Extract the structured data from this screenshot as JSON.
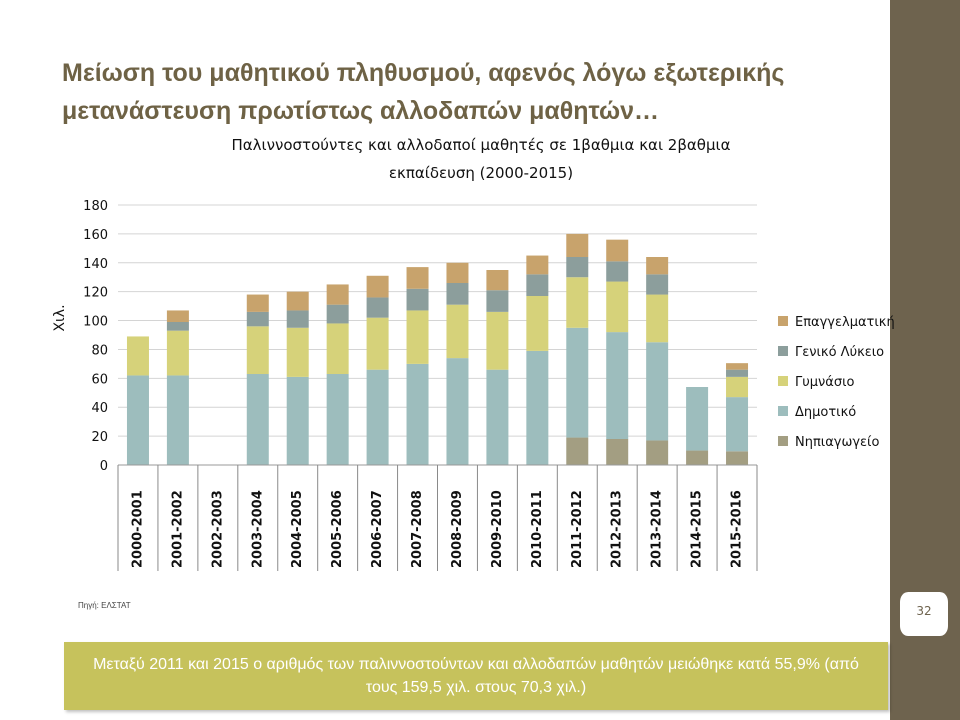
{
  "slide": {
    "title_line1": "Μείωση του μαθητικού πληθυσμού, αφενός λόγω εξωτερικής",
    "title_line2": "μετανάστευση πρωτίστως αλλοδαπών μαθητών…",
    "source": "Πηγή: ΕΛΣΤΑΤ",
    "summary": "Μεταξύ 2011 και 2015 ο αριθμός των παλιννοστούντων  και αλλοδαπών μαθητών μειώθηκε κατά 55,9% (από τους  159,5 χιλ. στους  70,3 χιλ.)",
    "page_number": "32"
  },
  "colors": {
    "band": "#6e634e",
    "title": "#6e6245",
    "summary_bg": "#c6c25c"
  },
  "chart_data": {
    "type": "bar",
    "stacked": true,
    "title_line1": "Παλιννοστούντες και αλλοδαποί μαθητές σε 1βαθμια και 2βαθμια",
    "title_line2": "εκπαίδευση (2000-2015)",
    "ylabel": "Χιλ.",
    "xlabel": "",
    "ylim": [
      0,
      180
    ],
    "yticks": [
      0,
      20,
      40,
      60,
      80,
      100,
      120,
      140,
      160,
      180
    ],
    "grid": true,
    "legend_position": "right",
    "categories": [
      "2000-2001",
      "2001-2002",
      "2002-2003",
      "2003-2004",
      "2004-2005",
      "2005-2006",
      "2006-2007",
      "2007-2008",
      "2008-2009",
      "2009-2010",
      "2010-2011",
      "2011-2012",
      "2012-2013",
      "2013-2014",
      "2014-2015",
      "2015-2016"
    ],
    "series": [
      {
        "name": "Νηπιαγωγείο",
        "color": "#a39e82",
        "values": [
          0,
          0,
          0,
          0,
          0,
          0,
          0,
          0,
          0,
          0,
          0,
          19,
          18,
          17,
          10,
          9.5
        ]
      },
      {
        "name": "Δημοτικό",
        "color": "#9dbdbd",
        "values": [
          62,
          62,
          0,
          63,
          61,
          63,
          66,
          70,
          74,
          66,
          79,
          76,
          74,
          68,
          44,
          37.5
        ]
      },
      {
        "name": "Γυμνάσιο",
        "color": "#d6d27a",
        "values": [
          27,
          31,
          0,
          33,
          34,
          35,
          36,
          37,
          37,
          40,
          38,
          35,
          35,
          33,
          0,
          14
        ]
      },
      {
        "name": "Γενικό Λύκειο",
        "color": "#8c9e9c",
        "values": [
          0,
          6,
          0,
          10,
          12,
          13,
          14,
          15,
          15,
          15,
          15,
          14,
          14,
          14,
          0,
          5
        ]
      },
      {
        "name": "Επαγγελματική",
        "color": "#c8a36c",
        "values": [
          0,
          8,
          0,
          12,
          13,
          14,
          15,
          15,
          14,
          14,
          13,
          16,
          15,
          12,
          0,
          4.5
        ]
      }
    ]
  }
}
